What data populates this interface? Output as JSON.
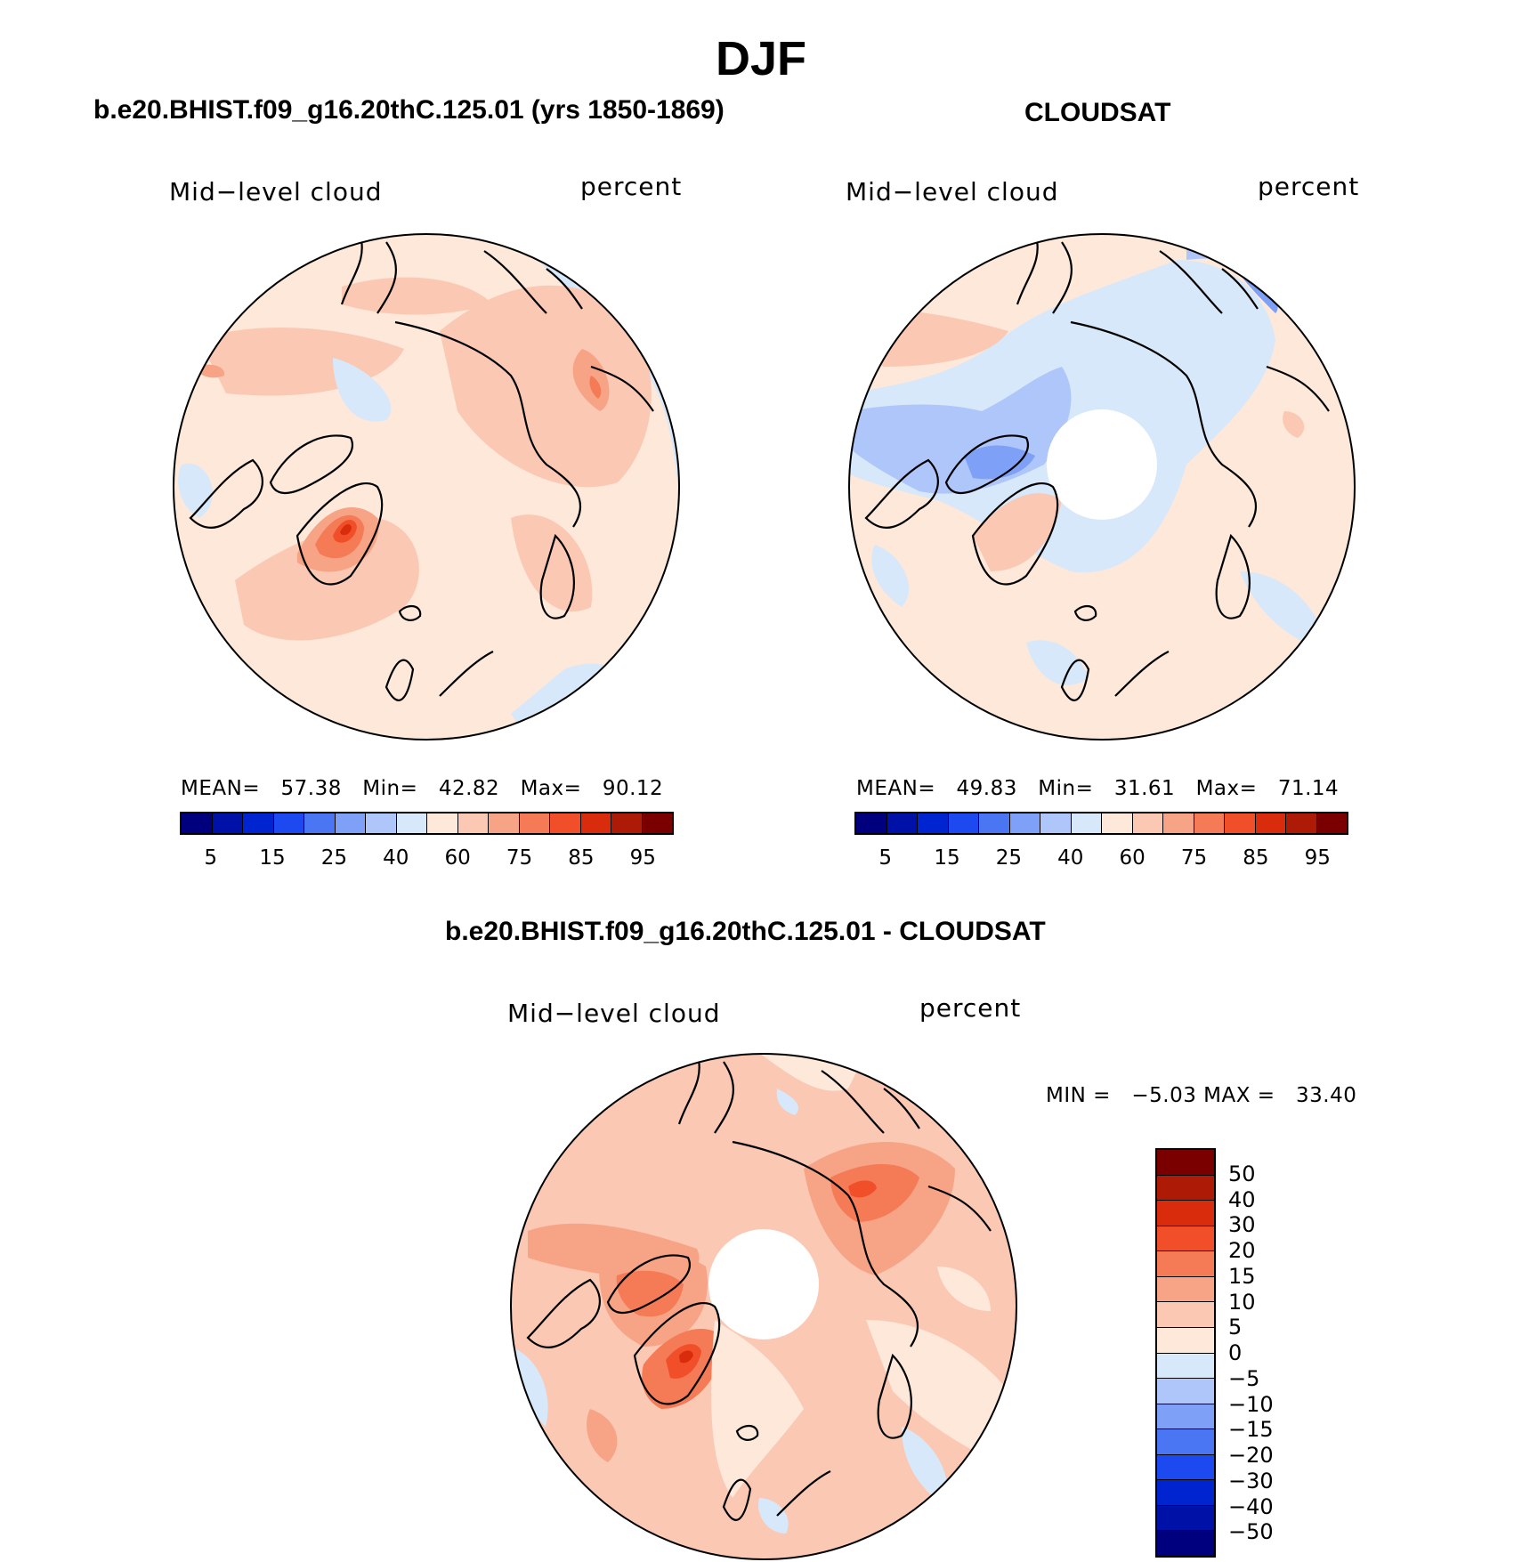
{
  "title": "DJF",
  "colors": {
    "abs_scale": [
      "#00007f",
      "#0011a8",
      "#0025d0",
      "#1c4af0",
      "#4a76f4",
      "#7ea0f6",
      "#afc6fa",
      "#d7e8fa",
      "#fde8da",
      "#fbc8b4",
      "#f7a386",
      "#f57a56",
      "#f04f2a",
      "#d92c0d",
      "#ad1a06",
      "#7a0000"
    ],
    "diff_scale": [
      "#7a0000",
      "#ad1a06",
      "#d92c0d",
      "#f04f2a",
      "#f57a56",
      "#f7a386",
      "#fbc8b4",
      "#fde8da",
      "#d7e8fa",
      "#afc6fa",
      "#7ea0f6",
      "#4a76f4",
      "#1c4af0",
      "#0025d0",
      "#0011a8",
      "#00007f"
    ]
  },
  "panels": {
    "model": {
      "title": "b.e20.BHIST.f09_g16.20thC.125.01 (yrs 1850-1869)",
      "variable": "Mid−level cloud",
      "units": "percent",
      "stats": "MEAN=   57.38   Min=   42.82   Max=   90.12",
      "colorbar_labels": [
        "5",
        "15",
        "25",
        "40",
        "60",
        "75",
        "85",
        "95"
      ]
    },
    "obs": {
      "title": "CLOUDSAT",
      "variable": "Mid−level cloud",
      "units": "percent",
      "stats": "MEAN=   49.83   Min=   31.61   Max=   71.14",
      "colorbar_labels": [
        "5",
        "15",
        "25",
        "40",
        "60",
        "75",
        "85",
        "95"
      ]
    },
    "diff": {
      "title": "b.e20.BHIST.f09_g16.20thC.125.01 - CLOUDSAT",
      "variable": "Mid−level cloud",
      "units": "percent",
      "stats": "MIN =   −5.03 MAX =   33.40",
      "colorbar_labels": [
        "50",
        "40",
        "30",
        "20",
        "15",
        "10",
        "5",
        "0",
        "−5",
        "−10",
        "−15",
        "−20",
        "−30",
        "−40",
        "−50"
      ]
    }
  }
}
